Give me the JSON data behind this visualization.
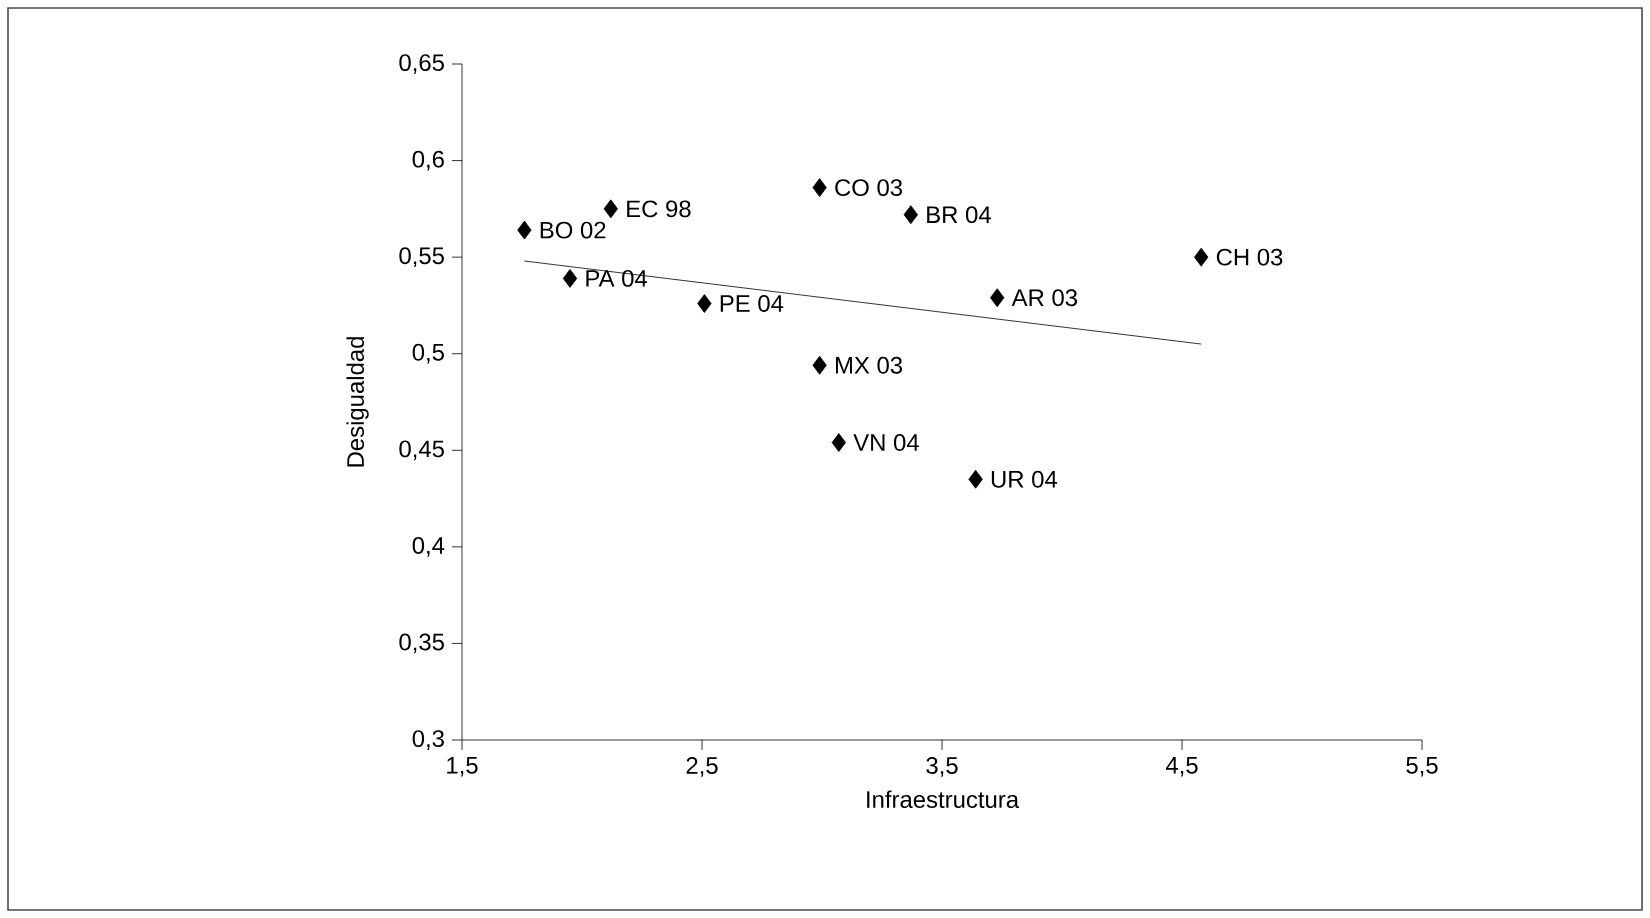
{
  "chart_data": {
    "type": "scatter",
    "xlabel": "Infraestructura",
    "ylabel": "Desigualdad",
    "xlim": [
      1.5,
      5.5
    ],
    "ylim": [
      0.3,
      0.65
    ],
    "xticks": [
      {
        "value": 1.5,
        "label": "1,5"
      },
      {
        "value": 2.5,
        "label": "2,5"
      },
      {
        "value": 3.5,
        "label": "3,5"
      },
      {
        "value": 4.5,
        "label": "4,5"
      },
      {
        "value": 5.5,
        "label": "5,5"
      }
    ],
    "yticks": [
      {
        "value": 0.3,
        "label": "0,3"
      },
      {
        "value": 0.35,
        "label": "0,35"
      },
      {
        "value": 0.4,
        "label": "0,4"
      },
      {
        "value": 0.45,
        "label": "0,45"
      },
      {
        "value": 0.5,
        "label": "0,5"
      },
      {
        "value": 0.55,
        "label": "0,55"
      },
      {
        "value": 0.6,
        "label": "0,6"
      },
      {
        "value": 0.65,
        "label": "0,65"
      }
    ],
    "series": [
      {
        "marker": "diamond",
        "color": "#000000",
        "x": [
          1.76,
          2.12,
          2.99,
          3.37,
          1.95,
          2.51,
          2.99,
          3.07,
          3.64,
          3.73,
          4.58
        ],
        "values": [
          0.564,
          0.575,
          0.586,
          0.572,
          0.539,
          0.526,
          0.494,
          0.454,
          0.435,
          0.529,
          0.55
        ]
      },
      {
        "type": "line",
        "marker": "none",
        "color": "#000000",
        "x": [
          1.76,
          4.58
        ],
        "values": [
          0.548,
          0.505
        ]
      }
    ],
    "annotations": [
      {
        "text": "BO 02",
        "x": 1.76,
        "y": 0.564
      },
      {
        "text": "EC 98",
        "x": 2.12,
        "y": 0.575
      },
      {
        "text": "CO 03",
        "x": 2.99,
        "y": 0.586
      },
      {
        "text": "BR 04",
        "x": 3.37,
        "y": 0.572
      },
      {
        "text": "PA 04",
        "x": 1.95,
        "y": 0.539
      },
      {
        "text": "PE 04",
        "x": 2.51,
        "y": 0.526
      },
      {
        "text": "MX 03",
        "x": 2.99,
        "y": 0.494
      },
      {
        "text": "VN 04",
        "x": 3.07,
        "y": 0.454
      },
      {
        "text": "UR 04",
        "x": 3.64,
        "y": 0.435
      },
      {
        "text": "AR 03",
        "x": 3.73,
        "y": 0.529
      },
      {
        "text": "CH 03",
        "x": 4.58,
        "y": 0.55
      }
    ]
  }
}
